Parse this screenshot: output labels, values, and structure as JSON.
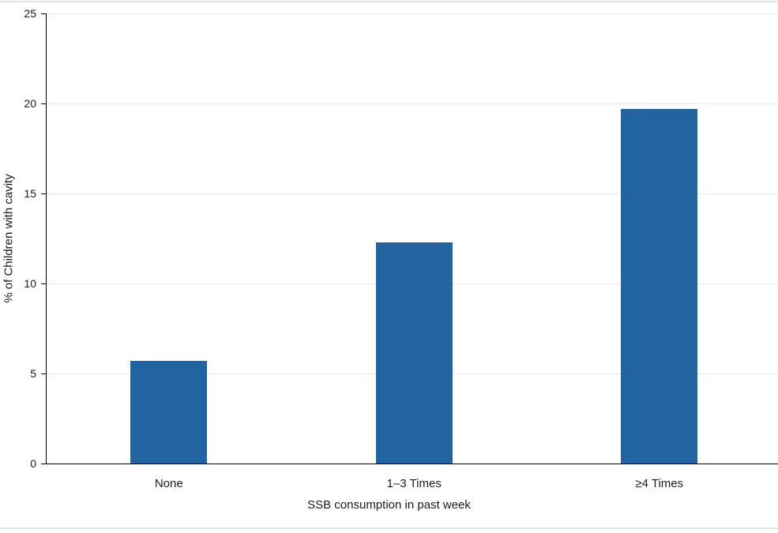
{
  "chart_data": {
    "type": "bar",
    "title": "",
    "categories": [
      "None",
      "1–3 Times",
      "≥4 Times"
    ],
    "values": [
      5.7,
      12.3,
      19.7
    ],
    "xlabel": "SSB consumption in past week",
    "ylabel": "% of Children with cavity",
    "ylim": [
      0,
      25
    ],
    "y_ticks": [
      0,
      5,
      10,
      15,
      20,
      25
    ],
    "grid": "horizontal-only",
    "legend": "none",
    "bar_color": "#2263A1",
    "gridline_color": "#e8e8e8",
    "axis_color": "#000000",
    "text_color": "#1a1a1a"
  },
  "page": {
    "border_color": "#e3e3e3"
  }
}
